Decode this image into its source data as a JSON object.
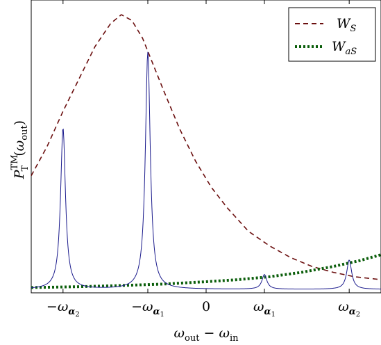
{
  "chart_data": {
    "type": "line",
    "title": "",
    "xlabel": "ω_out − ω_in",
    "ylabel": "P_T^TM(ω_out)",
    "xlim": [
      -1.65,
      1.65
    ],
    "ylim": [
      0,
      1.0
    ],
    "grid": false,
    "legend": {
      "placement": "top-right"
    },
    "x_ticks": [
      {
        "value": -1.35,
        "label": "−ω_α2"
      },
      {
        "value": -0.55,
        "label": "−ω_α1"
      },
      {
        "value": 0.0,
        "label": "0"
      },
      {
        "value": 0.55,
        "label": "ω_α1"
      },
      {
        "value": 1.35,
        "label": "ω_α2"
      }
    ],
    "series": [
      {
        "name": "W_S",
        "style": "dashed",
        "color": "#6b0f0f",
        "x": [
          -1.65,
          -1.5,
          -1.35,
          -1.2,
          -1.05,
          -0.9,
          -0.8,
          -0.7,
          -0.6,
          -0.5,
          -0.4,
          -0.25,
          -0.1,
          0.05,
          0.2,
          0.4,
          0.6,
          0.8,
          1.0,
          1.2,
          1.4,
          1.65
        ],
        "values": [
          0.4,
          0.5,
          0.62,
          0.73,
          0.84,
          0.92,
          0.95,
          0.93,
          0.87,
          0.78,
          0.69,
          0.56,
          0.45,
          0.36,
          0.29,
          0.21,
          0.16,
          0.12,
          0.09,
          0.07,
          0.055,
          0.045
        ]
      },
      {
        "name": "W_aS",
        "style": "dotted",
        "color": "#0b5e0b",
        "x": [
          -1.65,
          -1.2,
          -0.8,
          -0.4,
          0.0,
          0.3,
          0.6,
          0.9,
          1.2,
          1.45,
          1.65
        ],
        "values": [
          0.018,
          0.021,
          0.025,
          0.03,
          0.038,
          0.045,
          0.055,
          0.07,
          0.09,
          0.11,
          0.13
        ]
      },
      {
        "name": "",
        "style": "solid",
        "color": "#1a1a8c",
        "peaks": [
          {
            "x": -1.35,
            "height": 0.55
          },
          {
            "x": -0.55,
            "height": 0.81
          },
          {
            "x": 0.55,
            "height": 0.05
          },
          {
            "x": 1.35,
            "height": 0.1
          }
        ],
        "x": [
          -1.65,
          -1.5,
          -1.42,
          -1.38,
          -1.35,
          -1.32,
          -1.28,
          -1.2,
          -1.0,
          -0.8,
          -0.65,
          -0.59,
          -0.55,
          -0.51,
          -0.45,
          -0.3,
          0.0,
          0.3,
          0.5,
          0.55,
          0.6,
          0.8,
          1.1,
          1.3,
          1.35,
          1.4,
          1.55,
          1.65
        ],
        "values": [
          0.02,
          0.045,
          0.14,
          0.34,
          0.55,
          0.34,
          0.14,
          0.05,
          0.03,
          0.05,
          0.15,
          0.45,
          0.81,
          0.45,
          0.15,
          0.04,
          0.015,
          0.01,
          0.02,
          0.05,
          0.02,
          0.01,
          0.015,
          0.045,
          0.1,
          0.045,
          0.015,
          0.012
        ]
      }
    ]
  }
}
